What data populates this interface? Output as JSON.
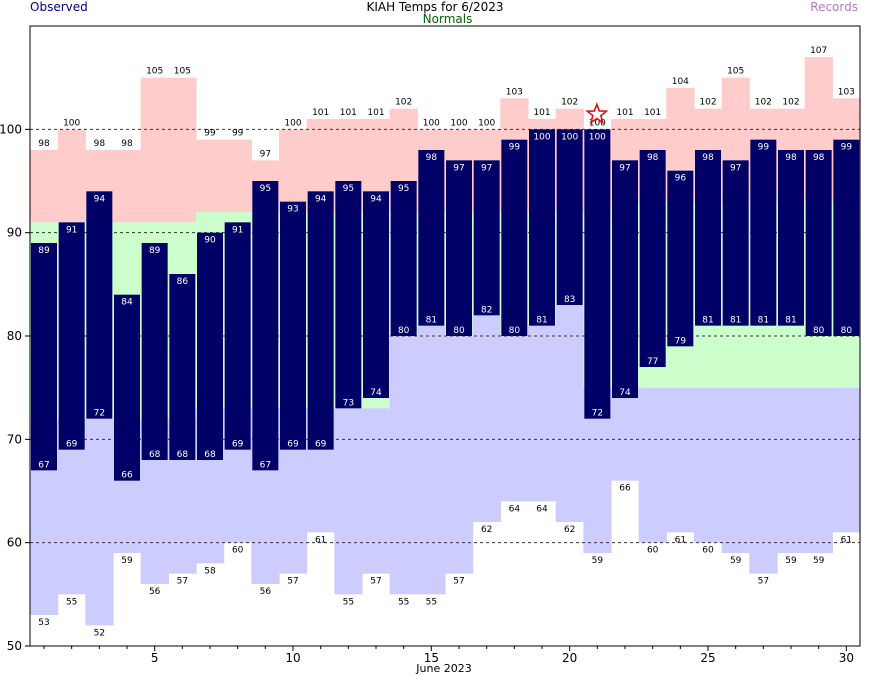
{
  "header": {
    "observed_label": "Observed",
    "title": "KIAH Temps for 6/2023",
    "normals_label": "Normals",
    "records_label": "Records"
  },
  "chart_data": {
    "type": "bar",
    "title": "KIAH Temps for 6/2023",
    "xlabel": "June 2023",
    "ylabel": "",
    "xlim": [
      0.5,
      30.5
    ],
    "ylim": [
      50,
      110
    ],
    "x_ticks": [
      5,
      10,
      15,
      20,
      25,
      30
    ],
    "y_ticks": [
      50,
      60,
      70,
      80,
      90,
      100
    ],
    "gridlines": [
      60,
      70,
      80,
      90,
      100
    ],
    "grid": "dashed horizontal",
    "days": [
      1,
      2,
      3,
      4,
      5,
      6,
      7,
      8,
      9,
      10,
      11,
      12,
      13,
      14,
      15,
      16,
      17,
      18,
      19,
      20,
      21,
      22,
      23,
      24,
      25,
      26,
      27,
      28,
      29,
      30
    ],
    "series": [
      {
        "name": "Observed",
        "role": "observed_high",
        "values": [
          89,
          91,
          94,
          84,
          89,
          86,
          90,
          91,
          95,
          93,
          94,
          95,
          94,
          95,
          98,
          97,
          97,
          99,
          100,
          100,
          100,
          97,
          98,
          96,
          98,
          97,
          99,
          98,
          98,
          99
        ]
      },
      {
        "name": "Observed",
        "role": "observed_low",
        "values": [
          67,
          69,
          72,
          66,
          68,
          68,
          68,
          69,
          67,
          69,
          69,
          73,
          74,
          80,
          81,
          80,
          82,
          80,
          81,
          83,
          72,
          74,
          77,
          79,
          81,
          81,
          81,
          81,
          80,
          80
        ]
      },
      {
        "name": "Normals",
        "role": "normal_high",
        "values": [
          91,
          91,
          91,
          91,
          91,
          91,
          92,
          92,
          92,
          92,
          92,
          92,
          92,
          92,
          92,
          92,
          92,
          92,
          92,
          92,
          92,
          93,
          93,
          93,
          93,
          93,
          93,
          93,
          93,
          93
        ]
      },
      {
        "name": "Normals",
        "role": "normal_low",
        "values": [
          72,
          72,
          72,
          72,
          72,
          72,
          73,
          73,
          73,
          73,
          73,
          73,
          73,
          80,
          81,
          80,
          82,
          80,
          81,
          83,
          75,
          75,
          75,
          75,
          75,
          75,
          75,
          75,
          75,
          75
        ]
      },
      {
        "name": "Records",
        "role": "record_high",
        "values": [
          98,
          100,
          98,
          98,
          105,
          105,
          99,
          99,
          97,
          100,
          101,
          101,
          101,
          102,
          100,
          100,
          100,
          103,
          101,
          102,
          100,
          101,
          101,
          104,
          102,
          105,
          102,
          102,
          107,
          103
        ]
      },
      {
        "name": "Records",
        "role": "record_low",
        "values": [
          53,
          55,
          52,
          59,
          56,
          57,
          58,
          60,
          56,
          57,
          61,
          55,
          57,
          55,
          55,
          57,
          62,
          64,
          64,
          62,
          59,
          66,
          60,
          61,
          60,
          59,
          57,
          59,
          59,
          61
        ]
      }
    ],
    "markers": [
      {
        "day": 21,
        "symbol": "star",
        "color": "#e01010"
      }
    ],
    "colors": {
      "observed": "#000066",
      "normal_band": "#ccffcc",
      "record_high_band": "#ffcccc",
      "record_low_band": "#ccccff",
      "marker": "#e01010"
    }
  }
}
